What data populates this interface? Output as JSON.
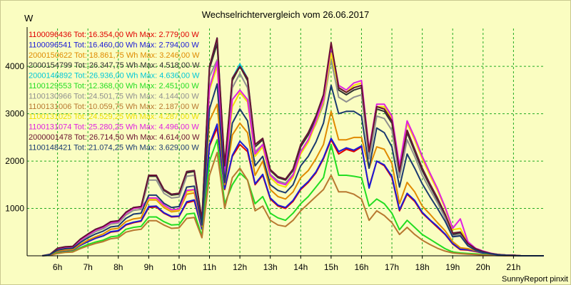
{
  "chart_data": {
    "type": "line",
    "title": "Wechselrichtervergleich vom 26.06.2017",
    "ylabel": "W",
    "footer": "SunnyReport pinxit",
    "ylim": [
      0,
      4800
    ],
    "xlim": [
      5.0,
      22.0
    ],
    "yticks": [
      {
        "v": 1000,
        "label": "1000"
      },
      {
        "v": 2000,
        "label": "2000"
      },
      {
        "v": 3000,
        "label": "3000"
      },
      {
        "v": 4000,
        "label": "4000"
      }
    ],
    "xticks": [
      {
        "v": 6,
        "label": "6h"
      },
      {
        "v": 7,
        "label": "7h"
      },
      {
        "v": 8,
        "label": "8h"
      },
      {
        "v": 9,
        "label": "9h"
      },
      {
        "v": 10,
        "label": "10h"
      },
      {
        "v": 11,
        "label": "11h"
      },
      {
        "v": 12,
        "label": "12h"
      },
      {
        "v": 13,
        "label": "13h"
      },
      {
        "v": 14,
        "label": "14h"
      },
      {
        "v": 15,
        "label": "15h"
      },
      {
        "v": 16,
        "label": "16h"
      },
      {
        "v": 17,
        "label": "17h"
      },
      {
        "v": 18,
        "label": "18h"
      },
      {
        "v": 19,
        "label": "19h"
      },
      {
        "v": 20,
        "label": "20h"
      },
      {
        "v": 21,
        "label": "21h"
      }
    ],
    "x": [
      5.5,
      5.75,
      6.0,
      6.25,
      6.5,
      6.75,
      7.0,
      7.25,
      7.5,
      7.75,
      8.0,
      8.25,
      8.5,
      8.75,
      9.0,
      9.25,
      9.5,
      9.75,
      10.0,
      10.25,
      10.5,
      10.75,
      11.0,
      11.25,
      11.5,
      11.75,
      12.0,
      12.25,
      12.5,
      12.75,
      13.0,
      13.25,
      13.5,
      13.75,
      14.0,
      14.25,
      14.5,
      14.75,
      15.0,
      15.25,
      15.5,
      15.75,
      16.0,
      16.25,
      16.5,
      16.75,
      17.0,
      17.25,
      17.5,
      17.75,
      18.0,
      18.25,
      18.5,
      18.75,
      19.0,
      19.25,
      19.5,
      19.75,
      20.0,
      20.25,
      20.5,
      20.75,
      21.0,
      21.25,
      21.5,
      21.75,
      22.0
    ],
    "series": [
      {
        "name": "1100096436",
        "legend": "1100096436 Tot: 16.354,00 Wh Max: 2.779,00 W",
        "color": "#e00000",
        "values": [
          0,
          20,
          90,
          110,
          120,
          220,
          300,
          370,
          420,
          500,
          520,
          650,
          700,
          730,
          1020,
          1030,
          900,
          820,
          830,
          1120,
          1160,
          560,
          2320,
          2700,
          1400,
          2100,
          2350,
          2200,
          1500,
          1700,
          1200,
          1050,
          1000,
          1150,
          1400,
          1550,
          1750,
          2050,
          2450,
          2150,
          2250,
          2200,
          2300,
          1450,
          2000,
          1900,
          1650,
          950,
          1300,
          1150,
          900,
          750,
          600,
          450,
          250,
          130,
          120,
          90,
          60,
          30,
          20,
          15,
          10,
          0,
          0,
          0,
          0
        ]
      },
      {
        "name": "1100096541",
        "legend": "1100096541 Tot: 16.460,00 Wh Max: 2.794,00 W",
        "color": "#1a1ad8",
        "values": [
          0,
          20,
          90,
          110,
          120,
          220,
          300,
          370,
          420,
          510,
          530,
          660,
          710,
          740,
          1040,
          1050,
          910,
          830,
          840,
          1140,
          1180,
          570,
          2350,
          2780,
          1420,
          2120,
          2420,
          2250,
          1520,
          1720,
          1220,
          1070,
          1020,
          1170,
          1420,
          1570,
          1770,
          2070,
          2480,
          2200,
          2280,
          2230,
          2320,
          1430,
          2000,
          1920,
          1680,
          970,
          1320,
          1170,
          920,
          760,
          620,
          460,
          260,
          140,
          130,
          100,
          60,
          30,
          20,
          15,
          10,
          0,
          0,
          0,
          0
        ]
      },
      {
        "name": "2000150622",
        "legend": "2000150622 Tot: 18.861,75 Wh Max: 3.246,00 W",
        "color": "#e08a00",
        "values": [
          0,
          20,
          100,
          120,
          130,
          240,
          330,
          400,
          460,
          560,
          580,
          720,
          780,
          800,
          1180,
          1180,
          1020,
          930,
          950,
          1300,
          1330,
          620,
          2850,
          3200,
          1500,
          2550,
          2800,
          2600,
          1700,
          2000,
          1400,
          1250,
          1200,
          1350,
          1650,
          1800,
          2050,
          2350,
          3050,
          2450,
          2450,
          2500,
          2500,
          1850,
          2300,
          2250,
          1950,
          1100,
          1550,
          1350,
          1050,
          880,
          700,
          530,
          300,
          170,
          150,
          110,
          70,
          30,
          20,
          15,
          10,
          0,
          0,
          0,
          0
        ]
      },
      {
        "name": "2000154799",
        "legend": "2000154799 Tot: 26.347,75 Wh Max: 4.518,00 W",
        "color": "#303030",
        "values": [
          0,
          30,
          150,
          180,
          190,
          330,
          440,
          540,
          600,
          700,
          720,
          900,
          1000,
          1020,
          1680,
          1680,
          1380,
          1280,
          1300,
          1750,
          1780,
          750,
          3950,
          4480,
          1850,
          3700,
          4000,
          3700,
          2300,
          2450,
          1800,
          1650,
          1600,
          1800,
          2300,
          2550,
          2900,
          3350,
          4400,
          3500,
          3400,
          3500,
          3550,
          2150,
          3100,
          3050,
          2800,
          1750,
          2600,
          2200,
          1800,
          1480,
          1180,
          850,
          450,
          480,
          250,
          140,
          90,
          50,
          25,
          15,
          10,
          0,
          0,
          0,
          0
        ]
      },
      {
        "name": "2000146892",
        "legend": "2000146892 Tot: 26.936,00 Wh Max: 4.636,00 W",
        "color": "#00c8d8",
        "values": [
          0,
          30,
          160,
          190,
          200,
          350,
          460,
          560,
          620,
          720,
          740,
          920,
          1020,
          1040,
          1700,
          1700,
          1400,
          1300,
          1320,
          1780,
          1800,
          760,
          4000,
          4600,
          1900,
          3750,
          4050,
          3750,
          2350,
          2480,
          1820,
          1670,
          1620,
          1830,
          2350,
          2600,
          2950,
          3400,
          4450,
          3550,
          3450,
          3550,
          3600,
          2200,
          3150,
          3100,
          2850,
          1780,
          2650,
          2250,
          1850,
          1520,
          1220,
          880,
          480,
          500,
          260,
          150,
          90,
          50,
          25,
          15,
          10,
          0,
          0,
          0,
          0
        ]
      },
      {
        "name": "1100129553",
        "legend": "1100129553 Tot: 12.368,00 Wh Max: 2.451,00 W",
        "color": "#22dd22",
        "values": [
          0,
          10,
          60,
          80,
          90,
          170,
          240,
          290,
          330,
          400,
          420,
          560,
          600,
          620,
          820,
          820,
          720,
          650,
          660,
          880,
          900,
          420,
          2000,
          2450,
          1100,
          1500,
          1750,
          1600,
          1100,
          1250,
          900,
          800,
          750,
          900,
          1100,
          1250,
          1450,
          1650,
          2350,
          1700,
          1700,
          1680,
          1650,
          1050,
          1200,
          1100,
          900,
          550,
          750,
          600,
          450,
          350,
          250,
          150,
          80,
          60,
          50,
          40,
          30,
          20,
          10,
          5,
          0,
          0,
          0,
          0,
          0
        ]
      },
      {
        "name": "1100130966",
        "legend": "1100130966 Tot: 24.501,75 Wh Max: 4.144,00 W",
        "color": "#909090",
        "values": [
          0,
          30,
          140,
          170,
          180,
          310,
          420,
          510,
          570,
          670,
          690,
          860,
          960,
          980,
          1600,
          1600,
          1320,
          1220,
          1240,
          1680,
          1700,
          720,
          3780,
          4140,
          1780,
          3550,
          3850,
          3550,
          2200,
          2350,
          1720,
          1580,
          1530,
          1720,
          2200,
          2450,
          2780,
          3200,
          4150,
          3350,
          3250,
          3350,
          3400,
          2050,
          2950,
          2900,
          2650,
          1650,
          2450,
          2100,
          1700,
          1400,
          1120,
          800,
          420,
          440,
          230,
          130,
          80,
          45,
          25,
          15,
          10,
          0,
          0,
          0,
          0
        ]
      },
      {
        "name": "1100131006",
        "legend": "1100131006 Tot: 10.059,75 Wh Max: 2.187,00 W",
        "color": "#b87830",
        "values": [
          0,
          10,
          50,
          70,
          80,
          150,
          210,
          260,
          300,
          360,
          380,
          500,
          540,
          560,
          740,
          740,
          650,
          580,
          590,
          790,
          810,
          380,
          1700,
          2180,
          1000,
          1650,
          1850,
          1600,
          950,
          1050,
          750,
          650,
          620,
          750,
          950,
          1100,
          1250,
          1400,
          1700,
          1350,
          1350,
          1300,
          1200,
          750,
          950,
          850,
          700,
          450,
          600,
          450,
          330,
          240,
          160,
          100,
          60,
          45,
          35,
          25,
          20,
          10,
          5,
          0,
          0,
          0,
          0,
          0,
          0
        ]
      },
      {
        "name": "1100131025",
        "legend": "1100131025 Tot: 24.529,25 Wh Max: 4.287,00 W",
        "color": "#f0e000",
        "values": [
          0,
          30,
          150,
          180,
          190,
          330,
          440,
          540,
          600,
          700,
          720,
          900,
          1000,
          1020,
          1200,
          1200,
          1050,
          950,
          970,
          1350,
          1380,
          650,
          3500,
          4000,
          1650,
          3150,
          3450,
          3250,
          2100,
          2300,
          1650,
          1500,
          1450,
          1650,
          2150,
          2400,
          2800,
          3250,
          4280,
          3550,
          3450,
          3600,
          3650,
          2200,
          3150,
          3150,
          2900,
          1850,
          2800,
          2450,
          2050,
          1700,
          1380,
          1000,
          550,
          580,
          280,
          150,
          90,
          50,
          25,
          15,
          10,
          0,
          0,
          0,
          0
        ]
      },
      {
        "name": "1100131074",
        "legend": "1100131074 Tot: 25.280,25 Wh Max: 4.496,00 W",
        "color": "#e020e0",
        "values": [
          0,
          30,
          150,
          180,
          190,
          330,
          440,
          540,
          600,
          700,
          720,
          900,
          1000,
          1020,
          1220,
          1220,
          1070,
          970,
          990,
          1380,
          1400,
          660,
          3550,
          4100,
          1700,
          3300,
          3500,
          3300,
          2150,
          2350,
          1700,
          1550,
          1500,
          1700,
          2200,
          2450,
          2850,
          3300,
          4450,
          3600,
          3500,
          3650,
          3700,
          2250,
          3200,
          3200,
          2950,
          1900,
          2850,
          2500,
          2100,
          1750,
          1420,
          1030,
          580,
          780,
          300,
          160,
          100,
          55,
          25,
          15,
          10,
          0,
          0,
          0,
          0
        ]
      },
      {
        "name": "2000001478",
        "legend": "2000001478 Tot: 26.714,50 Wh Max: 4.614,00 W",
        "color": "#6a1030",
        "values": [
          0,
          30,
          160,
          190,
          200,
          350,
          460,
          560,
          620,
          720,
          740,
          920,
          1020,
          1040,
          1700,
          1700,
          1400,
          1300,
          1320,
          1780,
          1800,
          760,
          4000,
          4600,
          1900,
          3750,
          4000,
          3750,
          2350,
          2480,
          1820,
          1670,
          1620,
          1830,
          2350,
          2600,
          2950,
          3400,
          4500,
          3550,
          3450,
          3550,
          3600,
          2200,
          3150,
          3100,
          2850,
          1780,
          2650,
          2250,
          1850,
          1520,
          1220,
          880,
          480,
          500,
          260,
          150,
          90,
          50,
          25,
          15,
          10,
          0,
          0,
          0,
          0
        ]
      },
      {
        "name": "1100148421",
        "legend": "1100148421 Tot: 21.074,25 Wh Max: 3.629,00 W",
        "color": "#1a3a70",
        "values": [
          0,
          25,
          120,
          150,
          160,
          280,
          380,
          460,
          520,
          610,
          630,
          790,
          880,
          900,
          1280,
          1280,
          1110,
          1020,
          1040,
          1450,
          1470,
          650,
          3100,
          3630,
          1550,
          2800,
          3100,
          2850,
          1900,
          2100,
          1500,
          1380,
          1330,
          1500,
          1900,
          2100,
          2400,
          2800,
          3600,
          3000,
          3050,
          3050,
          2950,
          1850,
          2700,
          2600,
          2300,
          1450,
          2150,
          1850,
          1520,
          1250,
          1000,
          730,
          400,
          420,
          210,
          120,
          70,
          40,
          20,
          10,
          5,
          0,
          0,
          0,
          0
        ]
      }
    ]
  }
}
